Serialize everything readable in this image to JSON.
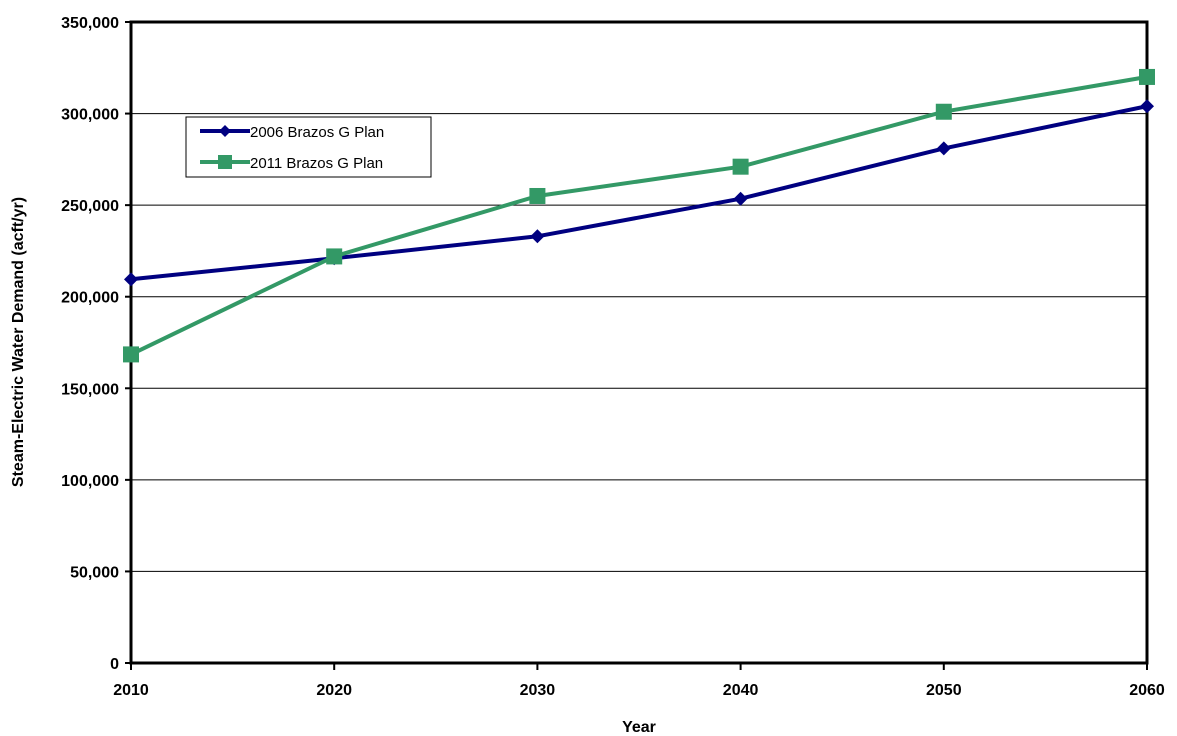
{
  "chart_data": {
    "type": "line",
    "xlabel": "Year",
    "ylabel": "Steam-Electric Water Demand (acft/yr)",
    "x": [
      2010,
      2020,
      2030,
      2040,
      2050,
      2060
    ],
    "x_tick_labels": [
      "2010",
      "2020",
      "2030",
      "2040",
      "2050",
      "2060"
    ],
    "xlim": [
      2010,
      2060
    ],
    "ylim": [
      0,
      350000
    ],
    "y_ticks": [
      0,
      50000,
      100000,
      150000,
      200000,
      250000,
      300000,
      350000
    ],
    "y_tick_labels": [
      "0",
      "50,000",
      "100,000",
      "150,000",
      "200,000",
      "250,000",
      "300,000",
      "350,000"
    ],
    "grid": "horizontal",
    "legend_position": "top-left",
    "series": [
      {
        "name": "2006 Brazos G Plan",
        "color": "#000080",
        "marker": "diamond",
        "values": [
          209500,
          221000,
          233000,
          253500,
          281000,
          304000
        ]
      },
      {
        "name": "2011 Brazos G Plan",
        "color": "#339966",
        "marker": "square",
        "values": [
          168500,
          222000,
          255000,
          271000,
          301000,
          320000
        ]
      }
    ]
  }
}
